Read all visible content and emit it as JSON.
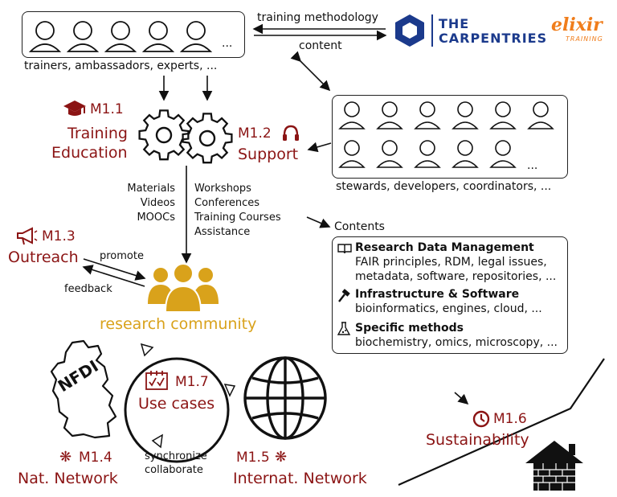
{
  "top_people": {
    "caption": "trainers, ambassadors, experts, ...",
    "ellipsis": "..."
  },
  "right_people": {
    "caption": "stewards, developers, coordinators, ...",
    "ellipsis": "..."
  },
  "carpentries": {
    "line1": "THE",
    "line2": "CARPENTRIES"
  },
  "elixir": {
    "word": "elixir",
    "sub": "TRAINING"
  },
  "arrows": {
    "training_methodology": "training methodology",
    "content": "content"
  },
  "m11": {
    "code": "M1.1",
    "line1": "Training",
    "line2": "Education"
  },
  "m12": {
    "code": "M1.2",
    "line1": "Support"
  },
  "m13": {
    "code": "M1.3",
    "line1": "Outreach"
  },
  "m14": {
    "code": "M1.4",
    "line1": "Nat. Network"
  },
  "m15": {
    "code": "M1.5",
    "line1": "Internat. Network"
  },
  "m16": {
    "code": "M1.6",
    "line1": "Sustainability"
  },
  "m17": {
    "code": "M1.7",
    "line1": "Use cases"
  },
  "materials": [
    "Materials",
    "Videos",
    "MOOCs"
  ],
  "workshops": [
    "Workshops",
    "Conferences",
    "Training Courses",
    "Assistance"
  ],
  "promote": "promote",
  "feedback": "feedback",
  "research_community": "research community",
  "sync": [
    "synchronize",
    "collaborate"
  ],
  "nfdi": "NFDI",
  "contents": {
    "title": "Contents",
    "sections": [
      {
        "icon": "book-icon",
        "heading": "Research Data Management",
        "lines": [
          "FAIR principles, RDM, legal issues,",
          "metadata, software, repositories, ..."
        ]
      },
      {
        "icon": "hammer-icon",
        "heading": "Infrastructure & Software",
        "lines": [
          "bioinformatics, engines, cloud, ..."
        ]
      },
      {
        "icon": "flask-icon",
        "heading": "Specific methods",
        "lines": [
          "biochemistry, omics, microscopy, ..."
        ]
      }
    ]
  },
  "colors": {
    "milestone_red": "#8b1414",
    "community_gold": "#d9a21b",
    "carpentries_blue": "#1b3a8c",
    "elixir_orange": "#f07d1b"
  }
}
